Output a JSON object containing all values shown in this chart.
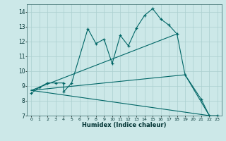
{
  "xlabel": "Humidex (Indice chaleur)",
  "bg_color": "#cce8e8",
  "line_color": "#006666",
  "grid_color": "#aacfcf",
  "xlim": [
    -0.5,
    23.5
  ],
  "ylim": [
    7,
    14.5
  ],
  "yticks": [
    7,
    8,
    9,
    10,
    11,
    12,
    13,
    14
  ],
  "xticks": [
    0,
    1,
    2,
    3,
    4,
    5,
    6,
    7,
    8,
    9,
    10,
    11,
    12,
    13,
    14,
    15,
    16,
    17,
    18,
    19,
    20,
    21,
    22,
    23
  ],
  "series1_x": [
    0,
    1,
    2,
    3,
    4,
    4,
    5,
    7,
    8,
    9,
    10,
    11,
    12,
    13,
    14,
    15,
    16,
    17,
    18,
    19,
    21,
    22,
    23
  ],
  "series1_y": [
    8.5,
    8.9,
    9.2,
    9.2,
    9.2,
    8.6,
    9.2,
    12.85,
    11.85,
    12.15,
    10.5,
    12.4,
    11.7,
    12.9,
    13.75,
    14.2,
    13.5,
    13.1,
    12.5,
    9.75,
    8.1,
    7.0,
    7.0
  ],
  "series2_x": [
    0,
    18
  ],
  "series2_y": [
    8.7,
    12.5
  ],
  "series3_x": [
    0,
    22
  ],
  "series3_y": [
    8.7,
    7.0
  ],
  "series4_x": [
    0,
    19,
    22
  ],
  "series4_y": [
    8.7,
    9.75,
    7.0
  ]
}
